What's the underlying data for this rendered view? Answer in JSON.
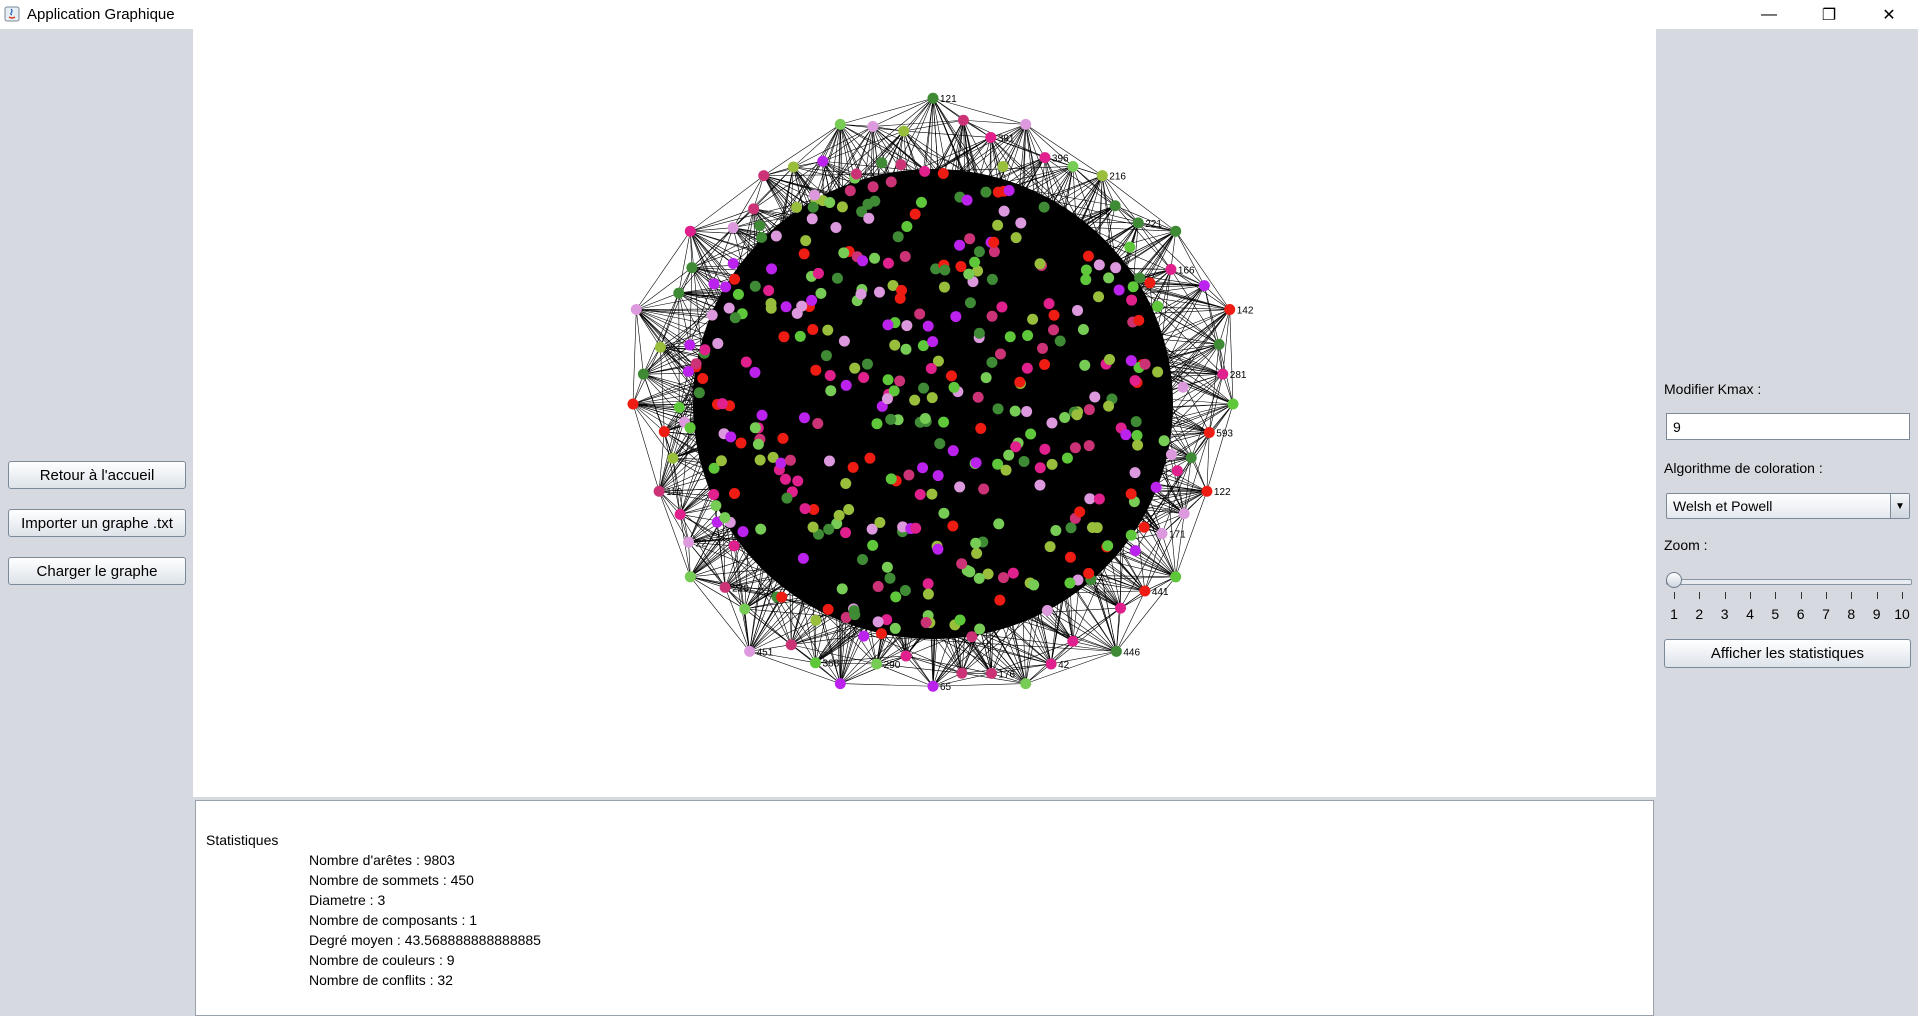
{
  "window": {
    "title": "Application Graphique",
    "controls": {
      "minimize": "—",
      "maximize": "❐",
      "close": "✕"
    }
  },
  "left_panel": {
    "buttons": [
      {
        "label": "Retour à l'accueil"
      },
      {
        "label": "Importer un graphe .txt"
      },
      {
        "label": "Charger le graphe"
      }
    ]
  },
  "graph": {
    "node_colors": [
      "#ee1c12",
      "#bb22ee",
      "#e0208c",
      "#5ec83a",
      "#3f8b35",
      "#dd99dd",
      "#77cc55",
      "#98be3c",
      "#cc3377"
    ],
    "labeled_nodes": [
      "121",
      "391",
      "396",
      "216",
      "221",
      "166",
      "142",
      "281",
      "593",
      "122",
      "171",
      "441",
      "446",
      "42",
      "176",
      "65",
      "290",
      "368",
      "451",
      "220",
      "22",
      "110"
    ]
  },
  "statistics": {
    "title": "Statistiques",
    "lines": [
      "Nombre d'arêtes : 9803",
      "Nombre de sommets : 450",
      "Diametre : 3",
      "Nombre de composants : 1",
      "Degré moyen : 43.568888888888885",
      "Nombre de couleurs : 9",
      "Nombre de conflits : 32"
    ]
  },
  "right_panel": {
    "kmax_label": "Modifier Kmax :",
    "kmax_value": "9",
    "algo_label": "Algorithme de coloration :",
    "algo_selected": "Welsh et Powell",
    "zoom_label": "Zoom :",
    "zoom_value": 1,
    "zoom_ticks": [
      "1",
      "2",
      "3",
      "4",
      "5",
      "6",
      "7",
      "8",
      "9",
      "10"
    ],
    "stats_button": "Afficher les statistiques"
  }
}
